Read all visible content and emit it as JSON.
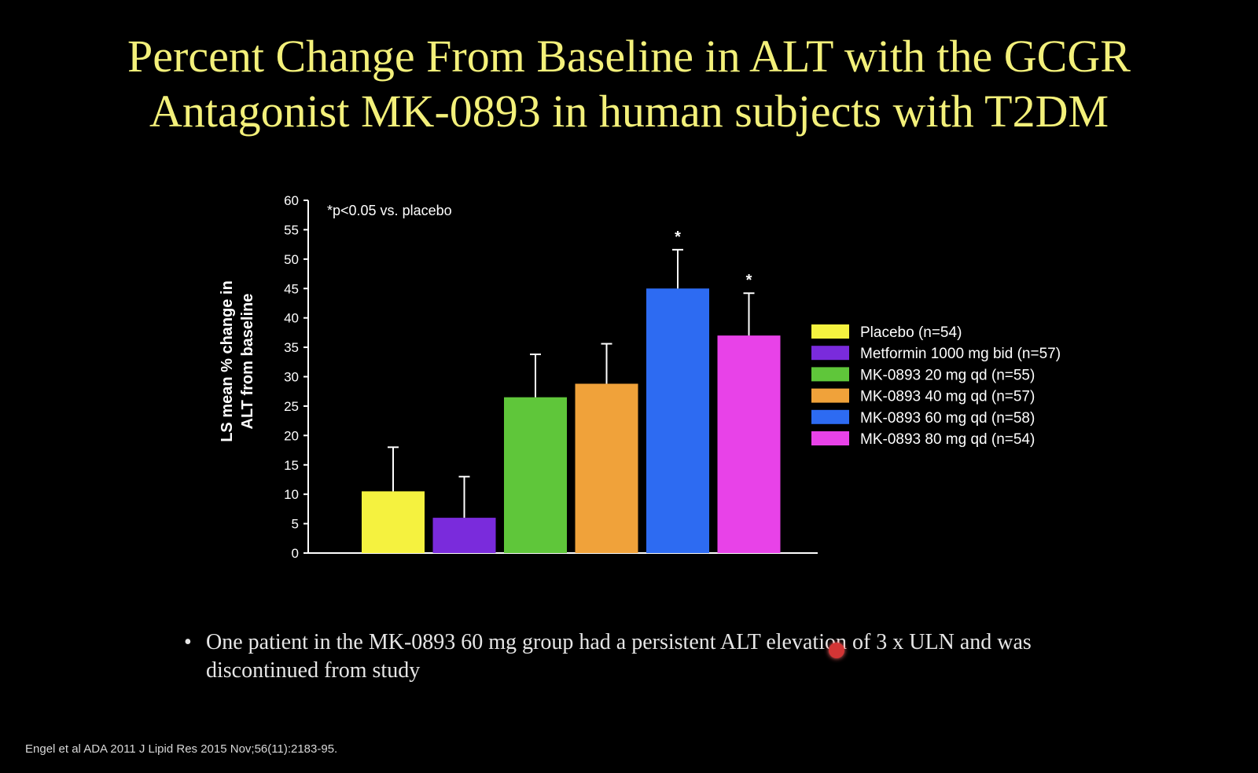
{
  "slide": {
    "title_line1": "Percent Change From Baseline in ALT with the GCGR",
    "title_line2": "Antagonist MK-0893 in human subjects with T2DM",
    "bullet_text": "One patient in the MK-0893 60 mg group had a persistent ALT elevation of 3 x ULN and was discontinued from study",
    "bullet_symbol": "•",
    "citation": "Engel et al ADA 2011  J Lipid Res 2015 Nov;56(11):2183-95."
  },
  "chart_data": {
    "type": "bar",
    "title": "",
    "ylabel_line1": "LS mean % change in",
    "ylabel_line2": "ALT from baseline",
    "ylim": [
      0,
      60
    ],
    "yticks": [
      "0",
      "5",
      "10",
      "15",
      "20",
      "25",
      "30",
      "35",
      "40",
      "45",
      "50",
      "55",
      "60"
    ],
    "annotation": "*p<0.05 vs. placebo",
    "legend_position": "right",
    "series": [
      {
        "name": "Placebo (n=54)",
        "value": 10.5,
        "error": 7.5,
        "color": "#f5f23f",
        "significant": false,
        "marker": ""
      },
      {
        "name": "Metformin 1000 mg bid (n=57)",
        "value": 6,
        "error": 7,
        "color": "#7a2bdc",
        "significant": false,
        "marker": ""
      },
      {
        "name": "MK-0893 20 mg qd (n=55)",
        "value": 26.5,
        "error": 7.3,
        "color": "#5fc63a",
        "significant": false,
        "marker": ""
      },
      {
        "name": "MK-0893 40 mg qd (n=57)",
        "value": 28.8,
        "error": 6.8,
        "color": "#f0a23a",
        "significant": false,
        "marker": ""
      },
      {
        "name": "MK-0893 60 mg qd (n=58)",
        "value": 45,
        "error": 6.6,
        "color": "#2d6bf2",
        "significant": true,
        "marker": "*"
      },
      {
        "name": "MK-0893 80 mg qd (n=54)",
        "value": 37,
        "error": 7.2,
        "color": "#e842e8",
        "significant": true,
        "marker": "*"
      }
    ]
  }
}
